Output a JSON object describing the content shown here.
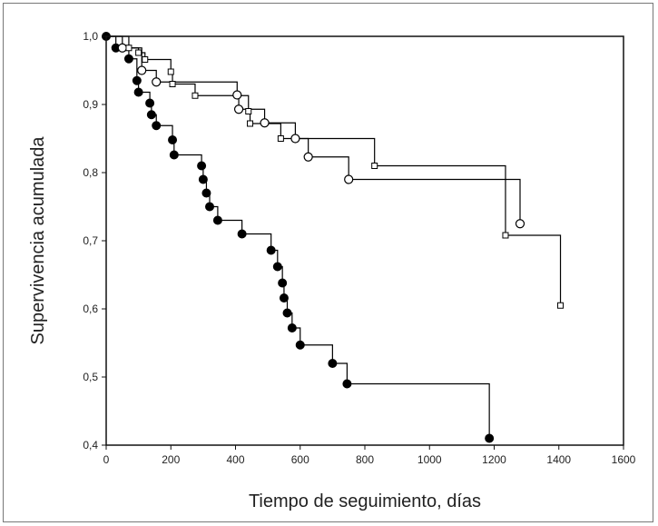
{
  "chart_data": {
    "type": "line",
    "title": "",
    "xlabel": "Tiempo de seguimiento, días",
    "ylabel": "Supervivencia acumulada",
    "xlim": [
      0,
      1600
    ],
    "ylim": [
      0.4,
      1.0
    ],
    "x_ticks": [
      0,
      200,
      400,
      600,
      800,
      1000,
      1200,
      1400,
      1600
    ],
    "x_tick_labels": [
      "0",
      "200",
      "400",
      "600",
      "800",
      "1000",
      "1200",
      "1400",
      "1600"
    ],
    "y_ticks": [
      0.4,
      0.5,
      0.6,
      0.7,
      0.8,
      0.9,
      1.0
    ],
    "y_tick_labels": [
      "0,4",
      "0,5",
      "0,6",
      "0,7",
      "0,8",
      "0,9",
      "1,0"
    ],
    "grid": false,
    "series": [
      {
        "marker": "filled-circle",
        "color": "#000000",
        "steps": [
          [
            0,
            1.0
          ],
          [
            30,
            0.983
          ],
          [
            70,
            0.967
          ],
          [
            95,
            0.935
          ],
          [
            100,
            0.918
          ],
          [
            135,
            0.902
          ],
          [
            140,
            0.885
          ],
          [
            155,
            0.869
          ],
          [
            205,
            0.848
          ],
          [
            210,
            0.826
          ],
          [
            295,
            0.81
          ],
          [
            300,
            0.79
          ],
          [
            310,
            0.77
          ],
          [
            320,
            0.75
          ],
          [
            345,
            0.73
          ],
          [
            420,
            0.71
          ],
          [
            510,
            0.686
          ],
          [
            530,
            0.662
          ],
          [
            545,
            0.638
          ],
          [
            550,
            0.616
          ],
          [
            560,
            0.594
          ],
          [
            575,
            0.572
          ],
          [
            600,
            0.547
          ],
          [
            700,
            0.52
          ],
          [
            745,
            0.49
          ],
          [
            1185,
            0.41
          ]
        ],
        "end": 1185
      },
      {
        "marker": "open-circle",
        "color": "#000000",
        "steps": [
          [
            0,
            1.0
          ],
          [
            50,
            0.983
          ],
          [
            110,
            0.95
          ],
          [
            155,
            0.933
          ],
          [
            405,
            0.914
          ],
          [
            410,
            0.893
          ],
          [
            490,
            0.873
          ],
          [
            585,
            0.85
          ],
          [
            625,
            0.823
          ],
          [
            750,
            0.79
          ],
          [
            1280,
            0.725
          ]
        ],
        "end": 1280
      },
      {
        "marker": "open-square",
        "color": "#000000",
        "steps": [
          [
            0,
            1.0
          ],
          [
            70,
            0.983
          ],
          [
            100,
            0.976
          ],
          [
            120,
            0.966
          ],
          [
            200,
            0.948
          ],
          [
            205,
            0.93
          ],
          [
            275,
            0.913
          ],
          [
            440,
            0.89
          ],
          [
            445,
            0.872
          ],
          [
            540,
            0.85
          ],
          [
            830,
            0.81
          ],
          [
            1235,
            0.708
          ],
          [
            1405,
            0.605
          ]
        ],
        "end": 1405
      }
    ]
  }
}
